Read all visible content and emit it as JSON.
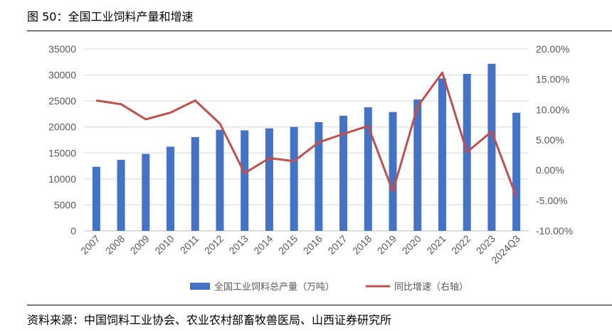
{
  "figure": {
    "title": "图 50：全国工业饲料产量和增速",
    "source": "资料来源：中国饲料工业协会、农业农村部畜牧兽医局、山西证券研究所"
  },
  "chart_data": {
    "type": "bar",
    "categories": [
      "2007",
      "2008",
      "2009",
      "2010",
      "2011",
      "2012",
      "2013",
      "2014",
      "2015",
      "2016",
      "2017",
      "2018",
      "2019",
      "2020",
      "2021",
      "2022",
      "2023",
      "2024Q3"
    ],
    "series": [
      {
        "name": "全国工业饲料总产量（万吨）",
        "type": "bar",
        "axis": "left",
        "color": "#4472C4",
        "values": [
          12330,
          13660,
          14810,
          16200,
          18060,
          19450,
          19340,
          19730,
          20010,
          20920,
          22160,
          23790,
          22870,
          25280,
          29340,
          30220,
          32160,
          22730
        ]
      },
      {
        "name": "同比增速（右轴）",
        "type": "line",
        "axis": "right",
        "color": "#C0504D",
        "values": [
          0.115,
          0.109,
          0.084,
          0.095,
          0.115,
          0.077,
          -0.005,
          0.02,
          0.015,
          0.046,
          0.06,
          0.073,
          -0.035,
          0.105,
          0.161,
          0.03,
          0.064,
          -0.044
        ]
      }
    ],
    "y_left": {
      "min": 0,
      "max": 35000,
      "step": 5000,
      "tick_labels": [
        "0",
        "5000",
        "10000",
        "15000",
        "20000",
        "25000",
        "30000",
        "35000"
      ]
    },
    "y_right": {
      "min": -0.1,
      "max": 0.2,
      "step": 0.05,
      "tick_labels": [
        "-10.00%",
        "-5.00%",
        "0.00%",
        "5.00%",
        "10.00%",
        "15.00%",
        "20.00%"
      ]
    },
    "grid": true,
    "legend_position": "bottom"
  }
}
